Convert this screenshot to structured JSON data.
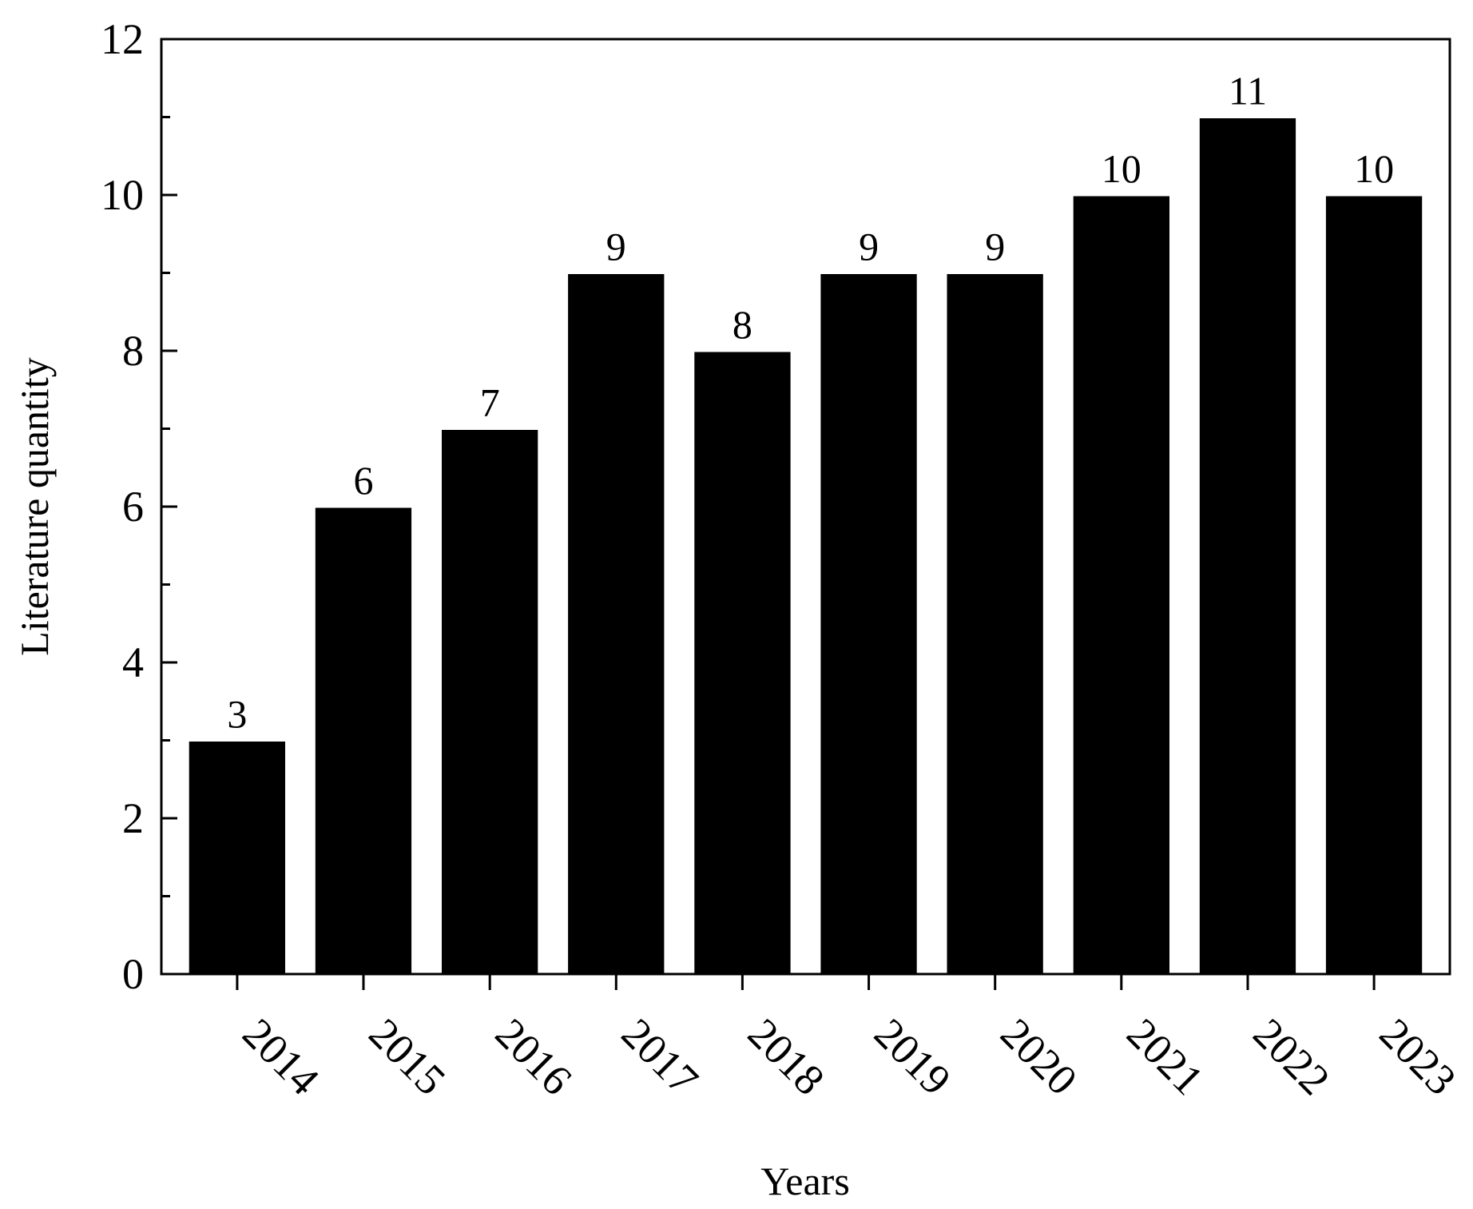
{
  "chart_data": {
    "type": "bar",
    "categories": [
      "2014",
      "2015",
      "2016",
      "2017",
      "2018",
      "2019",
      "2020",
      "2021",
      "2022",
      "2023"
    ],
    "values": [
      3,
      6,
      7,
      9,
      8,
      9,
      9,
      10,
      11,
      10
    ],
    "data_labels": [
      "3",
      "6",
      "7",
      "9",
      "8",
      "9",
      "9",
      "10",
      "11",
      "10"
    ],
    "xlabel": "Years",
    "ylabel": "Literature quantity",
    "ylim": [
      0,
      12
    ],
    "yticks": [
      0,
      2,
      4,
      6,
      8,
      10,
      12
    ],
    "ytick_labels": [
      "0",
      "2",
      "4",
      "6",
      "8",
      "10",
      "12"
    ],
    "bar_color": "#000000",
    "grid": false,
    "legend": "none"
  }
}
